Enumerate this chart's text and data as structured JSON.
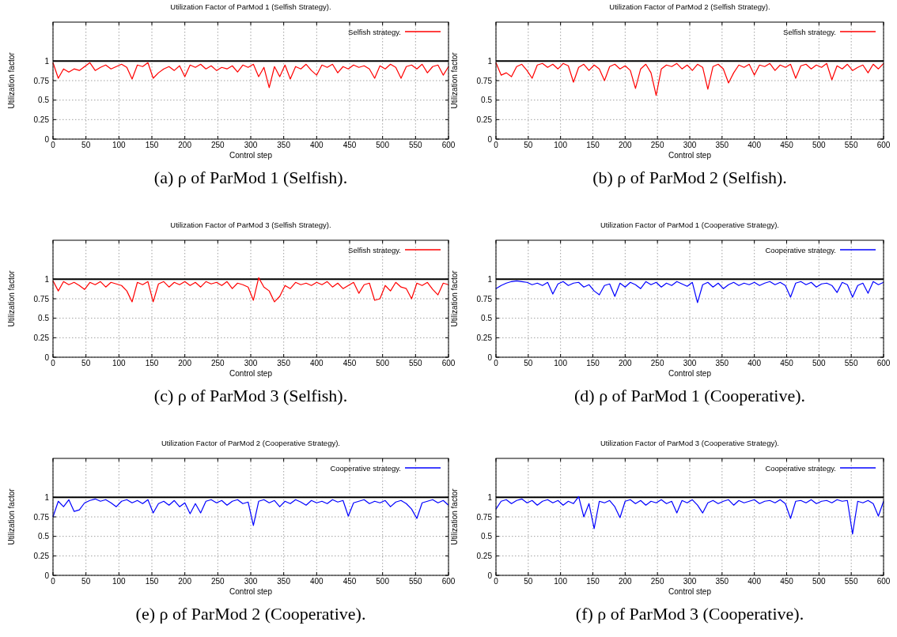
{
  "chart_data": [
    {
      "type": "line",
      "title": "Utilization Factor of ParMod 1 (Selfish Strategy).",
      "xlabel": "Control step",
      "ylabel": "Utilization factor",
      "annotations": [
        "(a) ρ of ParMod 1 (Selfish)."
      ],
      "xlim": [
        0,
        600
      ],
      "xticks": [
        0,
        50,
        100,
        150,
        200,
        250,
        300,
        350,
        400,
        450,
        500,
        550,
        600
      ],
      "ylim": [
        0,
        1.5
      ],
      "yticks": [
        0,
        0.25,
        0.5,
        0.75,
        1
      ],
      "grid": true,
      "legend": "top right",
      "ref_lines": [
        {
          "axis": "y",
          "value": 1,
          "color": "#000000"
        }
      ],
      "x": [
        0,
        8,
        16,
        24,
        32,
        40,
        48,
        56,
        64,
        72,
        80,
        88,
        96,
        104,
        112,
        120,
        128,
        136,
        144,
        152,
        160,
        168,
        176,
        184,
        192,
        200,
        208,
        216,
        224,
        232,
        240,
        248,
        256,
        264,
        272,
        280,
        288,
        296,
        304,
        312,
        320,
        328,
        336,
        344,
        352,
        360,
        368,
        376,
        384,
        392,
        400,
        408,
        416,
        424,
        432,
        440,
        448,
        456,
        464,
        472,
        480,
        488,
        496,
        504,
        512,
        520,
        528,
        536,
        544,
        552,
        560,
        568,
        576,
        584,
        592,
        600
      ],
      "series": [
        {
          "name": "Selfish strategy.",
          "color": "#ff0000",
          "values": [
            0.98,
            0.78,
            0.9,
            0.86,
            0.9,
            0.88,
            0.93,
            0.98,
            0.88,
            0.92,
            0.95,
            0.9,
            0.93,
            0.96,
            0.92,
            0.77,
            0.95,
            0.93,
            0.98,
            0.78,
            0.85,
            0.9,
            0.93,
            0.88,
            0.94,
            0.8,
            0.95,
            0.92,
            0.96,
            0.9,
            0.94,
            0.88,
            0.92,
            0.9,
            0.94,
            0.86,
            0.95,
            0.92,
            0.96,
            0.8,
            0.92,
            0.66,
            0.93,
            0.8,
            0.95,
            0.77,
            0.93,
            0.9,
            0.96,
            0.88,
            0.82,
            0.95,
            0.92,
            0.96,
            0.85,
            0.93,
            0.9,
            0.95,
            0.92,
            0.94,
            0.9,
            0.78,
            0.94,
            0.9,
            0.96,
            0.92,
            0.78,
            0.93,
            0.95,
            0.9,
            0.96,
            0.85,
            0.93,
            0.95,
            0.82,
            0.93
          ]
        }
      ]
    },
    {
      "type": "line",
      "title": "Utilization Factor of ParMod 2 (Selfish Strategy).",
      "xlabel": "Control step",
      "ylabel": "Utilization factor",
      "annotations": [
        "(b) ρ of ParMod 2 (Selfish)."
      ],
      "xlim": [
        0,
        600
      ],
      "xticks": [
        0,
        50,
        100,
        150,
        200,
        250,
        300,
        350,
        400,
        450,
        500,
        550,
        600
      ],
      "ylim": [
        0,
        1.5
      ],
      "yticks": [
        0,
        0.25,
        0.5,
        0.75,
        1
      ],
      "grid": true,
      "legend": "top right",
      "ref_lines": [
        {
          "axis": "y",
          "value": 1,
          "color": "#000000"
        }
      ],
      "x": [
        0,
        8,
        16,
        24,
        32,
        40,
        48,
        56,
        64,
        72,
        80,
        88,
        96,
        104,
        112,
        120,
        128,
        136,
        144,
        152,
        160,
        168,
        176,
        184,
        192,
        200,
        208,
        216,
        224,
        232,
        240,
        248,
        256,
        264,
        272,
        280,
        288,
        296,
        304,
        312,
        320,
        328,
        336,
        344,
        352,
        360,
        368,
        376,
        384,
        392,
        400,
        408,
        416,
        424,
        432,
        440,
        448,
        456,
        464,
        472,
        480,
        488,
        496,
        504,
        512,
        520,
        528,
        536,
        544,
        552,
        560,
        568,
        576,
        584,
        592,
        600
      ],
      "series": [
        {
          "name": "Selfish strategy.",
          "color": "#ff0000",
          "values": [
            0.98,
            0.82,
            0.85,
            0.8,
            0.93,
            0.96,
            0.88,
            0.78,
            0.95,
            0.97,
            0.92,
            0.96,
            0.9,
            0.97,
            0.94,
            0.73,
            0.92,
            0.96,
            0.88,
            0.95,
            0.9,
            0.75,
            0.93,
            0.96,
            0.9,
            0.94,
            0.88,
            0.65,
            0.9,
            0.96,
            0.85,
            0.56,
            0.9,
            0.95,
            0.93,
            0.97,
            0.9,
            0.95,
            0.88,
            0.96,
            0.92,
            0.64,
            0.93,
            0.96,
            0.9,
            0.72,
            0.85,
            0.95,
            0.92,
            0.96,
            0.82,
            0.95,
            0.93,
            0.97,
            0.88,
            0.95,
            0.92,
            0.96,
            0.78,
            0.94,
            0.96,
            0.9,
            0.95,
            0.92,
            0.97,
            0.76,
            0.94,
            0.9,
            0.96,
            0.88,
            0.92,
            0.95,
            0.85,
            0.96,
            0.9,
            0.97
          ]
        }
      ]
    },
    {
      "type": "line",
      "title": "Utilization Factor of ParMod 3 (Selfish Strategy).",
      "xlabel": "Control step",
      "ylabel": "Utilization factor",
      "annotations": [
        "(c) ρ of ParMod 3 (Selfish)."
      ],
      "xlim": [
        0,
        600
      ],
      "xticks": [
        0,
        50,
        100,
        150,
        200,
        250,
        300,
        350,
        400,
        450,
        500,
        550,
        600
      ],
      "ylim": [
        0,
        1.5
      ],
      "yticks": [
        0,
        0.25,
        0.5,
        0.75,
        1
      ],
      "grid": true,
      "legend": "top right",
      "ref_lines": [
        {
          "axis": "y",
          "value": 1,
          "color": "#000000"
        }
      ],
      "x": [
        0,
        8,
        16,
        24,
        32,
        40,
        48,
        56,
        64,
        72,
        80,
        88,
        96,
        104,
        112,
        120,
        128,
        136,
        144,
        152,
        160,
        168,
        176,
        184,
        192,
        200,
        208,
        216,
        224,
        232,
        240,
        248,
        256,
        264,
        272,
        280,
        288,
        296,
        304,
        312,
        320,
        328,
        336,
        344,
        352,
        360,
        368,
        376,
        384,
        392,
        400,
        408,
        416,
        424,
        432,
        440,
        448,
        456,
        464,
        472,
        480,
        488,
        496,
        504,
        512,
        520,
        528,
        536,
        544,
        552,
        560,
        568,
        576,
        584,
        592,
        600
      ],
      "series": [
        {
          "name": "Selfish strategy.",
          "color": "#ff0000",
          "values": [
            0.98,
            0.85,
            0.97,
            0.93,
            0.96,
            0.92,
            0.87,
            0.96,
            0.93,
            0.97,
            0.9,
            0.96,
            0.94,
            0.92,
            0.85,
            0.71,
            0.96,
            0.93,
            0.97,
            0.71,
            0.94,
            0.97,
            0.9,
            0.96,
            0.93,
            0.97,
            0.92,
            0.96,
            0.9,
            0.97,
            0.94,
            0.96,
            0.92,
            0.97,
            0.88,
            0.95,
            0.93,
            0.9,
            0.73,
            1.02,
            0.9,
            0.85,
            0.71,
            0.78,
            0.92,
            0.88,
            0.96,
            0.93,
            0.95,
            0.92,
            0.96,
            0.93,
            0.97,
            0.9,
            0.95,
            0.88,
            0.92,
            0.96,
            0.82,
            0.93,
            0.95,
            0.73,
            0.75,
            0.92,
            0.85,
            0.96,
            0.9,
            0.88,
            0.75,
            0.95,
            0.92,
            0.96,
            0.87,
            0.8,
            0.95,
            0.93
          ]
        }
      ]
    },
    {
      "type": "line",
      "title": "Utilization Factor of ParMod 1 (Cooperative Strategy).",
      "xlabel": "Control step",
      "ylabel": "Utilization factor",
      "annotations": [
        "(d) ρ of ParMod 1 (Cooperative)."
      ],
      "xlim": [
        0,
        600
      ],
      "xticks": [
        0,
        50,
        100,
        150,
        200,
        250,
        300,
        350,
        400,
        450,
        500,
        550,
        600
      ],
      "ylim": [
        0,
        1.5
      ],
      "yticks": [
        0,
        0.25,
        0.5,
        0.75,
        1
      ],
      "grid": true,
      "legend": "top right",
      "ref_lines": [
        {
          "axis": "y",
          "value": 1,
          "color": "#000000"
        }
      ],
      "x": [
        0,
        8,
        16,
        24,
        32,
        40,
        48,
        56,
        64,
        72,
        80,
        88,
        96,
        104,
        112,
        120,
        128,
        136,
        144,
        152,
        160,
        168,
        176,
        184,
        192,
        200,
        208,
        216,
        224,
        232,
        240,
        248,
        256,
        264,
        272,
        280,
        288,
        296,
        304,
        312,
        320,
        328,
        336,
        344,
        352,
        360,
        368,
        376,
        384,
        392,
        400,
        408,
        416,
        424,
        432,
        440,
        448,
        456,
        464,
        472,
        480,
        488,
        496,
        504,
        512,
        520,
        528,
        536,
        544,
        552,
        560,
        568,
        576,
        584,
        592,
        600
      ],
      "series": [
        {
          "name": "Cooperative strategy.",
          "color": "#0000ff",
          "values": [
            0.88,
            0.92,
            0.95,
            0.97,
            0.98,
            0.97,
            0.96,
            0.93,
            0.95,
            0.92,
            0.96,
            0.81,
            0.94,
            0.97,
            0.92,
            0.95,
            0.96,
            0.9,
            0.93,
            0.85,
            0.8,
            0.92,
            0.94,
            0.78,
            0.95,
            0.9,
            0.96,
            0.93,
            0.88,
            0.97,
            0.93,
            0.96,
            0.9,
            0.95,
            0.92,
            0.97,
            0.94,
            0.91,
            0.96,
            0.7,
            0.93,
            0.96,
            0.9,
            0.95,
            0.88,
            0.93,
            0.96,
            0.92,
            0.95,
            0.93,
            0.96,
            0.92,
            0.95,
            0.97,
            0.93,
            0.96,
            0.92,
            0.77,
            0.95,
            0.97,
            0.93,
            0.96,
            0.9,
            0.94,
            0.95,
            0.92,
            0.83,
            0.96,
            0.93,
            0.77,
            0.92,
            0.95,
            0.82,
            0.97,
            0.93,
            0.96
          ]
        }
      ]
    },
    {
      "type": "line",
      "title": "Utilization Factor of ParMod 2 (Cooperative Strategy).",
      "xlabel": "Control step",
      "ylabel": "Utilization factor",
      "annotations": [
        "(e) ρ of ParMod 2 (Cooperative)."
      ],
      "xlim": [
        0,
        600
      ],
      "xticks": [
        0,
        50,
        100,
        150,
        200,
        250,
        300,
        350,
        400,
        450,
        500,
        550,
        600
      ],
      "ylim": [
        0,
        1.5
      ],
      "yticks": [
        0,
        0.25,
        0.5,
        0.75,
        1
      ],
      "grid": true,
      "legend": "top right",
      "ref_lines": [
        {
          "axis": "y",
          "value": 1,
          "color": "#000000"
        }
      ],
      "x": [
        0,
        8,
        16,
        24,
        32,
        40,
        48,
        56,
        64,
        72,
        80,
        88,
        96,
        104,
        112,
        120,
        128,
        136,
        144,
        152,
        160,
        168,
        176,
        184,
        192,
        200,
        208,
        216,
        224,
        232,
        240,
        248,
        256,
        264,
        272,
        280,
        288,
        296,
        304,
        312,
        320,
        328,
        336,
        344,
        352,
        360,
        368,
        376,
        384,
        392,
        400,
        408,
        416,
        424,
        432,
        440,
        448,
        456,
        464,
        472,
        480,
        488,
        496,
        504,
        512,
        520,
        528,
        536,
        544,
        552,
        560,
        568,
        576,
        584,
        592,
        600
      ],
      "series": [
        {
          "name": "Cooperative strategy.",
          "color": "#0000ff",
          "values": [
            0.75,
            0.95,
            0.88,
            0.97,
            0.82,
            0.84,
            0.93,
            0.96,
            0.98,
            0.95,
            0.97,
            0.93,
            0.88,
            0.95,
            0.97,
            0.93,
            0.96,
            0.92,
            0.97,
            0.8,
            0.92,
            0.95,
            0.9,
            0.96,
            0.88,
            0.93,
            0.79,
            0.92,
            0.8,
            0.95,
            0.97,
            0.93,
            0.96,
            0.9,
            0.95,
            0.97,
            0.92,
            0.94,
            0.64,
            0.95,
            0.97,
            0.93,
            0.96,
            0.88,
            0.95,
            0.92,
            0.97,
            0.94,
            0.9,
            0.96,
            0.93,
            0.95,
            0.92,
            0.97,
            0.94,
            0.96,
            0.76,
            0.93,
            0.95,
            0.97,
            0.92,
            0.95,
            0.93,
            0.96,
            0.88,
            0.94,
            0.96,
            0.92,
            0.85,
            0.73,
            0.93,
            0.95,
            0.97,
            0.93,
            0.96,
            0.9
          ]
        }
      ]
    },
    {
      "type": "line",
      "title": "Utilization Factor of ParMod 3 (Cooperative Strategy).",
      "xlabel": "Control step",
      "ylabel": "Utilization factor",
      "annotations": [
        "(f) ρ of ParMod 3 (Cooperative)."
      ],
      "xlim": [
        0,
        600
      ],
      "xticks": [
        0,
        50,
        100,
        150,
        200,
        250,
        300,
        350,
        400,
        450,
        500,
        550,
        600
      ],
      "ylim": [
        0,
        1.5
      ],
      "yticks": [
        0,
        0.25,
        0.5,
        0.75,
        1
      ],
      "grid": true,
      "legend": "top right",
      "ref_lines": [
        {
          "axis": "y",
          "value": 1,
          "color": "#000000"
        }
      ],
      "x": [
        0,
        8,
        16,
        24,
        32,
        40,
        48,
        56,
        64,
        72,
        80,
        88,
        96,
        104,
        112,
        120,
        128,
        136,
        144,
        152,
        160,
        168,
        176,
        184,
        192,
        200,
        208,
        216,
        224,
        232,
        240,
        248,
        256,
        264,
        272,
        280,
        288,
        296,
        304,
        312,
        320,
        328,
        336,
        344,
        352,
        360,
        368,
        376,
        384,
        392,
        400,
        408,
        416,
        424,
        432,
        440,
        448,
        456,
        464,
        472,
        480,
        488,
        496,
        504,
        512,
        520,
        528,
        536,
        544,
        552,
        560,
        568,
        576,
        584,
        592,
        600
      ],
      "series": [
        {
          "name": "Cooperative strategy.",
          "color": "#0000ff",
          "values": [
            0.85,
            0.95,
            0.97,
            0.92,
            0.96,
            0.98,
            0.93,
            0.96,
            0.9,
            0.95,
            0.97,
            0.93,
            0.96,
            0.9,
            0.95,
            0.92,
            1.01,
            0.75,
            0.92,
            0.6,
            0.95,
            0.93,
            0.96,
            0.88,
            0.74,
            0.95,
            0.97,
            0.92,
            0.96,
            0.9,
            0.95,
            0.93,
            0.97,
            0.92,
            0.95,
            0.8,
            0.96,
            0.93,
            0.97,
            0.9,
            0.8,
            0.93,
            0.96,
            0.92,
            0.95,
            0.97,
            0.9,
            0.96,
            0.93,
            0.95,
            0.97,
            0.92,
            0.95,
            0.96,
            0.93,
            0.97,
            0.92,
            0.73,
            0.95,
            0.96,
            0.93,
            0.97,
            0.92,
            0.95,
            0.96,
            0.93,
            0.97,
            0.95,
            0.96,
            0.53,
            0.95,
            0.93,
            0.96,
            0.92,
            0.76,
            0.95
          ]
        }
      ]
    }
  ]
}
